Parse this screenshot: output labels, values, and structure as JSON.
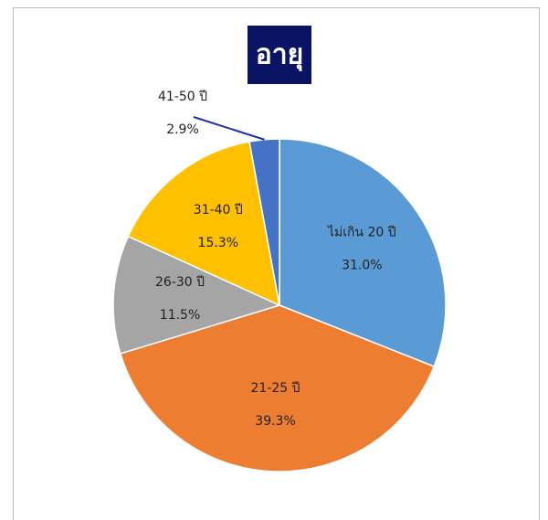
{
  "chart_data": {
    "type": "pie",
    "title": "อายุ",
    "categories": [
      "ไม่เกิน 20 ปี",
      "21-25 ปี",
      "26-30 ปี",
      "31-40 ปี",
      "41-50 ปี"
    ],
    "values": [
      31.0,
      39.3,
      11.5,
      15.3,
      2.9
    ],
    "value_labels": [
      "31.0%",
      "39.3%",
      "11.5%",
      "15.3%",
      "2.9%"
    ],
    "colors": [
      "#5b9bd5",
      "#ed7d31",
      "#a5a5a5",
      "#ffc000",
      "#4472c4"
    ]
  }
}
